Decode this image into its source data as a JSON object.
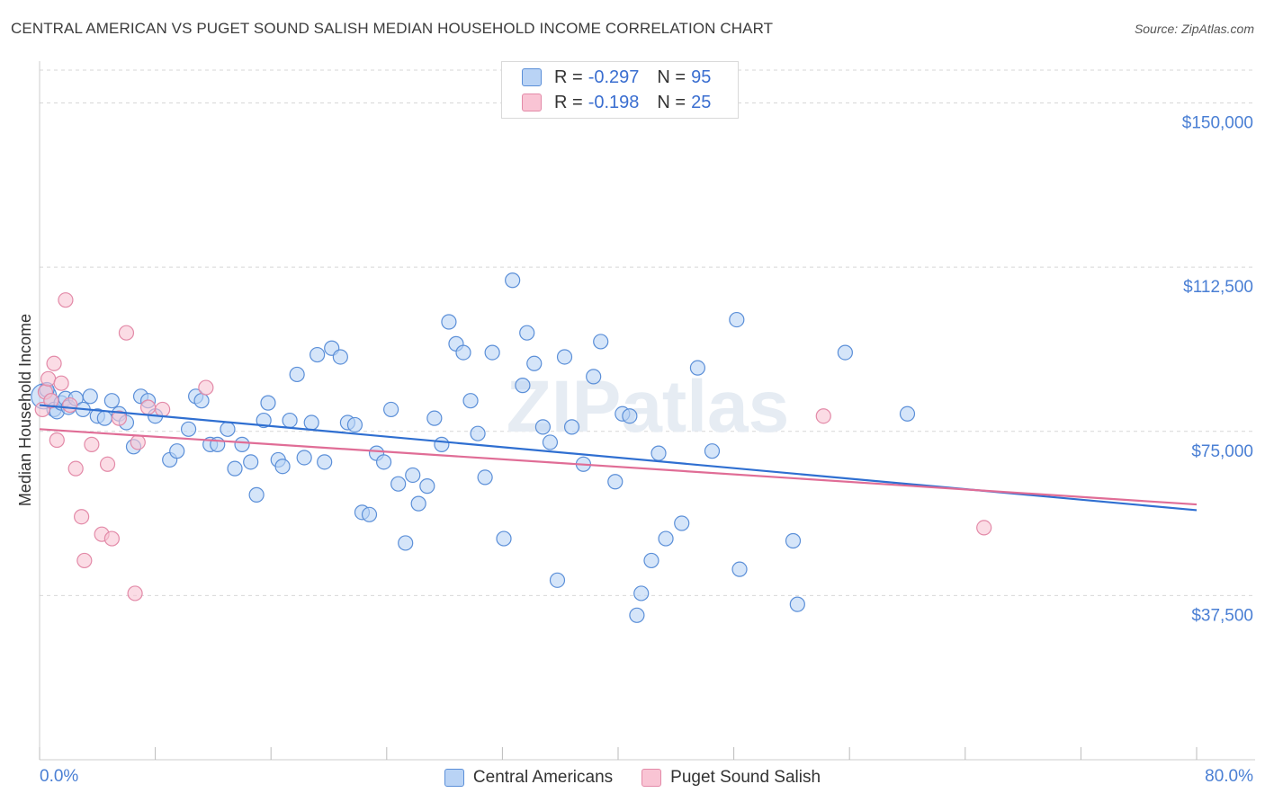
{
  "title": "CENTRAL AMERICAN VS PUGET SOUND SALISH MEDIAN HOUSEHOLD INCOME CORRELATION CHART",
  "source": "Source: ZipAtlas.com",
  "watermark": "ZIPatlas",
  "legend": {
    "rows": [
      {
        "r_label": "R = ",
        "r_value": "-0.297",
        "n_label": "N = ",
        "n_value": "95"
      },
      {
        "r_label": "R = ",
        "r_value": "-0.198",
        "n_label": "N = ",
        "n_value": "25"
      }
    ]
  },
  "colors": {
    "blue_fill": "#b9d3f5",
    "blue_stroke": "#5b8fd8",
    "blue_line": "#2f6fd1",
    "pink_fill": "#f9c4d4",
    "pink_stroke": "#e38aa8",
    "pink_line": "#e06d96",
    "tick_label": "#4a7fd4"
  },
  "chart_data": {
    "type": "scatter",
    "title": "CENTRAL AMERICAN VS PUGET SOUND SALISH MEDIAN HOUSEHOLD INCOME CORRELATION CHART",
    "xlabel": "",
    "ylabel": "Median Household Income",
    "xlim": [
      0,
      80
    ],
    "ylim": [
      0,
      157500
    ],
    "x_tick_labels": [
      "0.0%",
      "80.0%"
    ],
    "y_ticks": [
      37500,
      75000,
      112500,
      150000
    ],
    "y_tick_labels": [
      "$37,500",
      "$75,000",
      "$112,500",
      "$150,000"
    ],
    "grid": true,
    "legend_position": "top-center",
    "series": [
      {
        "name": "Central Americans",
        "points": [
          [
            0.3,
            83000
          ],
          [
            0.5,
            84500
          ],
          [
            0.8,
            82000
          ],
          [
            1.0,
            80000
          ],
          [
            1.2,
            79500
          ],
          [
            1.5,
            81500
          ],
          [
            1.8,
            82500
          ],
          [
            2.0,
            80500
          ],
          [
            2.5,
            82500
          ],
          [
            3.0,
            80000
          ],
          [
            3.5,
            83000
          ],
          [
            4.0,
            78500
          ],
          [
            4.5,
            78000
          ],
          [
            5.0,
            82000
          ],
          [
            5.5,
            79000
          ],
          [
            6.0,
            77000
          ],
          [
            6.5,
            71500
          ],
          [
            7.0,
            83000
          ],
          [
            7.5,
            82000
          ],
          [
            8.0,
            78500
          ],
          [
            9.0,
            68500
          ],
          [
            9.5,
            70500
          ],
          [
            10.3,
            75500
          ],
          [
            10.8,
            83000
          ],
          [
            11.2,
            82000
          ],
          [
            11.8,
            72000
          ],
          [
            12.3,
            72000
          ],
          [
            13.0,
            75500
          ],
          [
            13.5,
            66500
          ],
          [
            14.0,
            72000
          ],
          [
            14.6,
            68000
          ],
          [
            15.0,
            60500
          ],
          [
            15.5,
            77500
          ],
          [
            15.8,
            81500
          ],
          [
            16.5,
            68500
          ],
          [
            16.8,
            67000
          ],
          [
            17.3,
            77500
          ],
          [
            17.8,
            88000
          ],
          [
            18.3,
            69000
          ],
          [
            18.8,
            77000
          ],
          [
            19.2,
            92500
          ],
          [
            19.7,
            68000
          ],
          [
            20.2,
            94000
          ],
          [
            20.8,
            92000
          ],
          [
            21.3,
            77000
          ],
          [
            21.8,
            76500
          ],
          [
            22.3,
            56500
          ],
          [
            22.8,
            56000
          ],
          [
            23.3,
            70000
          ],
          [
            23.8,
            68000
          ],
          [
            24.3,
            80000
          ],
          [
            24.8,
            63000
          ],
          [
            25.3,
            49500
          ],
          [
            25.8,
            65000
          ],
          [
            26.2,
            58500
          ],
          [
            26.8,
            62500
          ],
          [
            27.3,
            78000
          ],
          [
            27.8,
            72000
          ],
          [
            28.3,
            100000
          ],
          [
            28.8,
            95000
          ],
          [
            29.3,
            93000
          ],
          [
            29.8,
            82000
          ],
          [
            30.3,
            74500
          ],
          [
            30.8,
            64500
          ],
          [
            31.3,
            93000
          ],
          [
            32.1,
            50500
          ],
          [
            32.7,
            109500
          ],
          [
            33.4,
            85500
          ],
          [
            33.7,
            97500
          ],
          [
            34.2,
            90500
          ],
          [
            34.8,
            76000
          ],
          [
            35.3,
            72500
          ],
          [
            35.8,
            41000
          ],
          [
            36.3,
            92000
          ],
          [
            36.8,
            76000
          ],
          [
            37.6,
            67500
          ],
          [
            38.3,
            87500
          ],
          [
            38.8,
            95500
          ],
          [
            39.8,
            63500
          ],
          [
            40.3,
            79000
          ],
          [
            40.8,
            78500
          ],
          [
            41.3,
            33000
          ],
          [
            41.6,
            38000
          ],
          [
            42.3,
            45500
          ],
          [
            42.8,
            70000
          ],
          [
            43.3,
            50500
          ],
          [
            44.4,
            54000
          ],
          [
            45.5,
            89500
          ],
          [
            46.5,
            70500
          ],
          [
            48.2,
            100500
          ],
          [
            48.4,
            43500
          ],
          [
            52.1,
            50000
          ],
          [
            52.4,
            35500
          ],
          [
            55.7,
            93000
          ],
          [
            60.0,
            79000
          ]
        ]
      },
      {
        "name": "Puget Sound Salish",
        "points": [
          [
            0.2,
            80000
          ],
          [
            0.4,
            84000
          ],
          [
            0.6,
            87000
          ],
          [
            0.8,
            82000
          ],
          [
            1.0,
            90500
          ],
          [
            1.2,
            73000
          ],
          [
            1.5,
            86000
          ],
          [
            1.8,
            105000
          ],
          [
            2.1,
            81000
          ],
          [
            2.5,
            66500
          ],
          [
            2.9,
            55500
          ],
          [
            3.1,
            45500
          ],
          [
            3.6,
            72000
          ],
          [
            4.3,
            51500
          ],
          [
            4.7,
            67500
          ],
          [
            5.0,
            50500
          ],
          [
            5.5,
            78000
          ],
          [
            6.0,
            97500
          ],
          [
            6.6,
            38000
          ],
          [
            6.8,
            72500
          ],
          [
            7.5,
            80500
          ],
          [
            8.5,
            80000
          ],
          [
            11.5,
            85000
          ],
          [
            54.2,
            78500
          ],
          [
            65.3,
            53000
          ]
        ]
      }
    ],
    "trend_lines": [
      {
        "series": "Central Americans",
        "from": [
          0,
          81000
        ],
        "to": [
          80,
          57000
        ]
      },
      {
        "series": "Puget Sound Salish",
        "from": [
          0,
          75500
        ],
        "to": [
          80,
          58300
        ]
      }
    ]
  },
  "bottom_legend": [
    "Central Americans",
    "Puget Sound Salish"
  ]
}
